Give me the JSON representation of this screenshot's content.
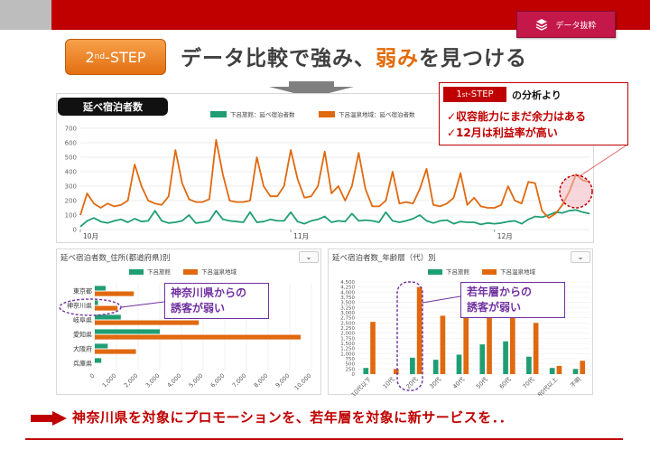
{
  "header": {
    "data_button_label": "データ抜粋",
    "step_badge": {
      "num": "2",
      "sup": "nd",
      "suffix": "-STEP"
    },
    "heading_pre": "データ比較で強み、",
    "heading_hl": "弱み",
    "heading_post": "を見つける"
  },
  "top_panel": {
    "title": "延べ宿泊者数",
    "legend": [
      "下呂旅館：延べ宿泊者数",
      "下呂温泉地域：延べ宿泊者数"
    ]
  },
  "callout_top": {
    "tag_num": "1",
    "tag_sup": "st",
    "tag_suffix": "-STEP",
    "after": "の分析より",
    "lines": [
      "✓収容能力にまだ余力はある",
      "✓12月は利益率が高い"
    ]
  },
  "left_panel": {
    "title": "延べ宿泊者数_住所(都道府県)別",
    "legend": [
      "下呂旅館",
      "下呂温泉地域"
    ],
    "dropdown": "⌄"
  },
  "right_panel": {
    "title": "延べ宿泊者数_年齢層（代）別",
    "legend": [
      "下呂旅館",
      "下呂温泉地域"
    ],
    "dropdown": "⌄"
  },
  "callout_left": {
    "line1": "神奈川県からの",
    "line2": "誘客が弱い"
  },
  "callout_right": {
    "line1": "若年層からの",
    "line2": "誘客が弱い"
  },
  "bottom_text": "神奈川県を対象にプロモーションを、若年層を対象に新サービスを．．",
  "colors": {
    "green": "#1f9e74",
    "orange": "#e0690f",
    "red": "#c00000",
    "purple": "#7030a0"
  },
  "chart_data": [
    {
      "type": "line",
      "title": "延べ宿泊者数",
      "ylim": [
        0,
        700
      ],
      "yticks": [
        0,
        100,
        200,
        300,
        400,
        500,
        600,
        700
      ],
      "xlabels": [
        {
          "label": "10月",
          "index": 0
        },
        {
          "label": "11月",
          "index": 31
        },
        {
          "label": "12月",
          "index": 61
        }
      ],
      "series": [
        {
          "name": "下呂旅館：延べ宿泊者数",
          "color": "#1f9e74",
          "values": [
            20,
            60,
            80,
            55,
            45,
            60,
            70,
            50,
            75,
            55,
            60,
            130,
            60,
            45,
            50,
            60,
            100,
            45,
            50,
            60,
            130,
            70,
            60,
            55,
            50,
            120,
            50,
            55,
            70,
            60,
            60,
            120,
            55,
            40,
            60,
            70,
            90,
            50,
            60,
            55,
            110,
            60,
            65,
            60,
            50,
            120,
            60,
            50,
            60,
            75,
            100,
            60,
            45,
            60,
            65,
            40,
            55,
            50,
            50,
            35,
            45,
            40,
            45,
            55,
            60,
            40,
            70,
            90,
            85,
            100,
            120,
            115,
            130,
            135,
            120,
            110
          ]
        },
        {
          "name": "下呂温泉地域：延べ宿泊者数",
          "color": "#e0690f",
          "values": [
            100,
            250,
            180,
            150,
            180,
            160,
            170,
            200,
            450,
            300,
            200,
            180,
            170,
            230,
            550,
            320,
            210,
            190,
            190,
            210,
            620,
            380,
            200,
            190,
            190,
            200,
            500,
            300,
            230,
            230,
            300,
            550,
            350,
            220,
            230,
            300,
            540,
            250,
            300,
            200,
            300,
            530,
            280,
            160,
            160,
            200,
            400,
            180,
            190,
            180,
            280,
            420,
            170,
            160,
            180,
            220,
            390,
            170,
            220,
            160,
            150,
            150,
            170,
            300,
            200,
            180,
            330,
            320,
            130,
            80,
            110,
            170,
            260,
            380,
            340,
            330
          ]
        }
      ]
    },
    {
      "type": "bar",
      "orientation": "horizontal",
      "title": "延べ宿泊者数_住所(都道府県)別",
      "categories": [
        "東京都",
        "神奈川県",
        "岐阜県",
        "愛知県",
        "大阪府",
        "兵庫県"
      ],
      "xlim": [
        0,
        10000
      ],
      "xticks": [
        0,
        1000,
        2000,
        3000,
        4000,
        5000,
        6000,
        7000,
        8000,
        9000,
        10000
      ],
      "series": [
        {
          "name": "下呂旅館",
          "color": "#1f9e74",
          "values": [
            500,
            150,
            1200,
            3000,
            600,
            300
          ]
        },
        {
          "name": "下呂温泉地域",
          "color": "#e0690f",
          "values": [
            1800,
            1050,
            4800,
            9500,
            1900,
            0
          ]
        }
      ]
    },
    {
      "type": "bar",
      "title": "延べ宿泊者数_年齢層（代）別",
      "categories": [
        "10代以下",
        "10代",
        "20代",
        "30代",
        "40代",
        "50代",
        "60代",
        "70代",
        "80代以上",
        "不明"
      ],
      "ylim": [
        0,
        4500
      ],
      "yticks": [
        0,
        250,
        500,
        750,
        1000,
        1250,
        1500,
        1750,
        2000,
        2250,
        2500,
        2750,
        3000,
        3250,
        3500,
        3750,
        4000,
        4250,
        4500
      ],
      "series": [
        {
          "name": "下呂旅館",
          "color": "#1f9e74",
          "values": [
            300,
            0,
            800,
            700,
            950,
            1450,
            1600,
            850,
            300,
            250
          ]
        },
        {
          "name": "下呂温泉地域",
          "color": "#e0690f",
          "values": [
            2550,
            250,
            4250,
            2850,
            2950,
            2850,
            2950,
            2500,
            400,
            650
          ]
        }
      ]
    }
  ]
}
